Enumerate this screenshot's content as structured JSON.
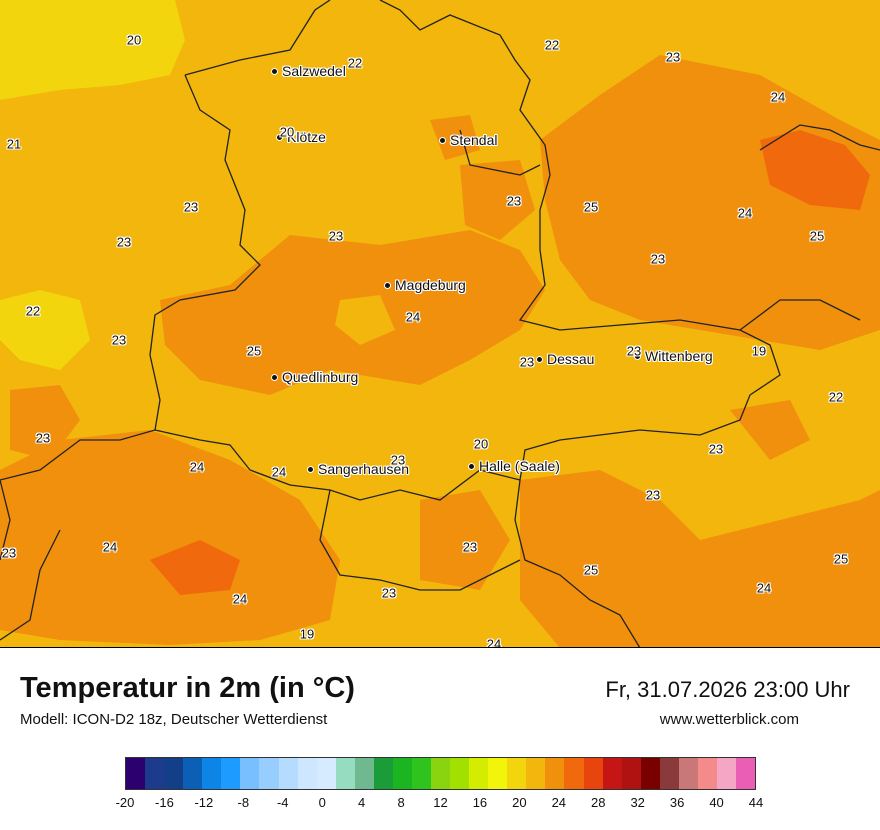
{
  "header": {
    "title": "Temperatur in 2m (in °C)",
    "subtitle": "Modell: ICON-D2 18z, Deutscher Wetterdienst",
    "datetime": "Fr, 31.07.2026 23:00 Uhr",
    "website": "www.wetterblick.com"
  },
  "cities": [
    {
      "name": "Salzwedel"
    },
    {
      "name": "Klötze"
    },
    {
      "name": "Stendal"
    },
    {
      "name": "Magdeburg"
    },
    {
      "name": "Dessau"
    },
    {
      "name": "Wittenberg"
    },
    {
      "name": "Quedlinburg"
    },
    {
      "name": "Sangerhausen"
    },
    {
      "name": "Halle (Saale)"
    }
  ],
  "values": [
    "20",
    "22",
    "22",
    "23",
    "24",
    "21",
    "20",
    "23",
    "25",
    "24",
    "25",
    "23",
    "23",
    "23",
    "23",
    "24",
    "22",
    "25",
    "23",
    "23",
    "19",
    "22",
    "23",
    "24",
    "24",
    "23",
    "20",
    "23",
    "23",
    "24",
    "23",
    "24",
    "25",
    "25",
    "23",
    "23",
    "23",
    "24",
    "19",
    "24"
  ],
  "legend": {
    "colors": [
      "#2c006e",
      "#1c3b8d",
      "#123f88",
      "#0b5fb5",
      "#0d85e6",
      "#1e9bff",
      "#78bfff",
      "#97cdff",
      "#b5dcff",
      "#cfe6ff",
      "#d6ebff",
      "#95dcc0",
      "#6fb890",
      "#1a9d38",
      "#1ab520",
      "#2fc41d",
      "#8ad40f",
      "#a2e000",
      "#d4ec00",
      "#f2f50a",
      "#f2d50c",
      "#f2b60c",
      "#f0900c",
      "#f0690c",
      "#e8450e",
      "#c51515",
      "#b01212",
      "#7a0000",
      "#8a3a3a",
      "#c97777",
      "#f48a8a",
      "#f4a6c4",
      "#ea5fb5"
    ],
    "ticks": [
      "-20",
      "-16",
      "-12",
      "-8",
      "-4",
      "0",
      "4",
      "8",
      "12",
      "16",
      "20",
      "24",
      "28",
      "32",
      "36",
      "40",
      "44"
    ]
  }
}
